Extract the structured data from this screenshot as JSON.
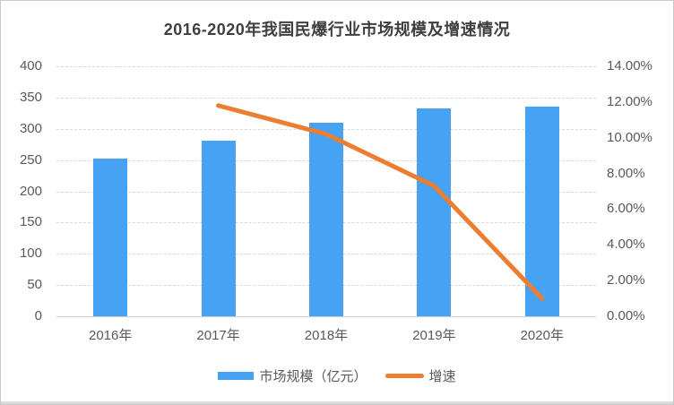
{
  "title": "2016-2020年我国民爆行业市场规模及增速情况",
  "colors": {
    "bar": "#46a2f3",
    "line": "#ed7d31",
    "title_text": "#3f3f3f",
    "axis_text": "#595959",
    "gridline": "#d9d9d9"
  },
  "chart_data": {
    "type": "bar",
    "subtype": "bar+line combo, dual axis",
    "title": "2016-2020年我国民爆行业市场规模及增速情况",
    "categories": [
      "2016年",
      "2017年",
      "2018年",
      "2019年",
      "2020年"
    ],
    "series": [
      {
        "name": "市场规模（亿元）",
        "type": "bar",
        "axis": "left",
        "values": [
          252,
          281,
          310,
          333,
          336
        ]
      },
      {
        "name": "增速",
        "type": "line",
        "axis": "right",
        "values": [
          null,
          11.8,
          10.2,
          7.3,
          1.0
        ]
      }
    ],
    "left_axis": {
      "min": 0,
      "max": 400,
      "ticks": [
        "400",
        "350",
        "300",
        "250",
        "200",
        "150",
        "100",
        "50",
        "0"
      ]
    },
    "right_axis": {
      "min": 0,
      "max": 14,
      "ticks": [
        "14.00%",
        "12.00%",
        "10.00%",
        "8.00%",
        "6.00%",
        "4.00%",
        "2.00%",
        "0.00%"
      ]
    },
    "grid": true,
    "legend_position": "bottom",
    "legend": [
      {
        "label": "市场规模（亿元）",
        "swatch": "bar"
      },
      {
        "label": "增速",
        "swatch": "line"
      }
    ]
  }
}
